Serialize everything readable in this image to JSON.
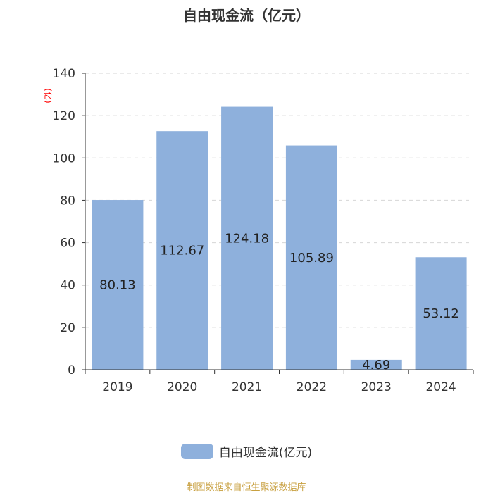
{
  "chart_data": {
    "type": "bar",
    "title": "自由现金流（亿元）",
    "ylabel": "(亿)",
    "categories": [
      "2019",
      "2020",
      "2021",
      "2022",
      "2023",
      "2024"
    ],
    "series": [
      {
        "name": "自由现金流(亿元)",
        "values": [
          80.13,
          112.67,
          124.18,
          105.89,
          4.69,
          53.12
        ]
      }
    ],
    "value_labels": [
      "80.13",
      "112.67",
      "124.18",
      "105.89",
      "4.69",
      "53.12"
    ],
    "ylim": [
      0,
      140
    ],
    "yticks": [
      0,
      20,
      40,
      60,
      80,
      100,
      120,
      140
    ],
    "grid": true,
    "legend_position": "bottom",
    "bar_color": "#8eb0dc",
    "ylabel_color": "#ff0000"
  },
  "footer": {
    "source": "制图数据来自恒生聚源数据库"
  }
}
